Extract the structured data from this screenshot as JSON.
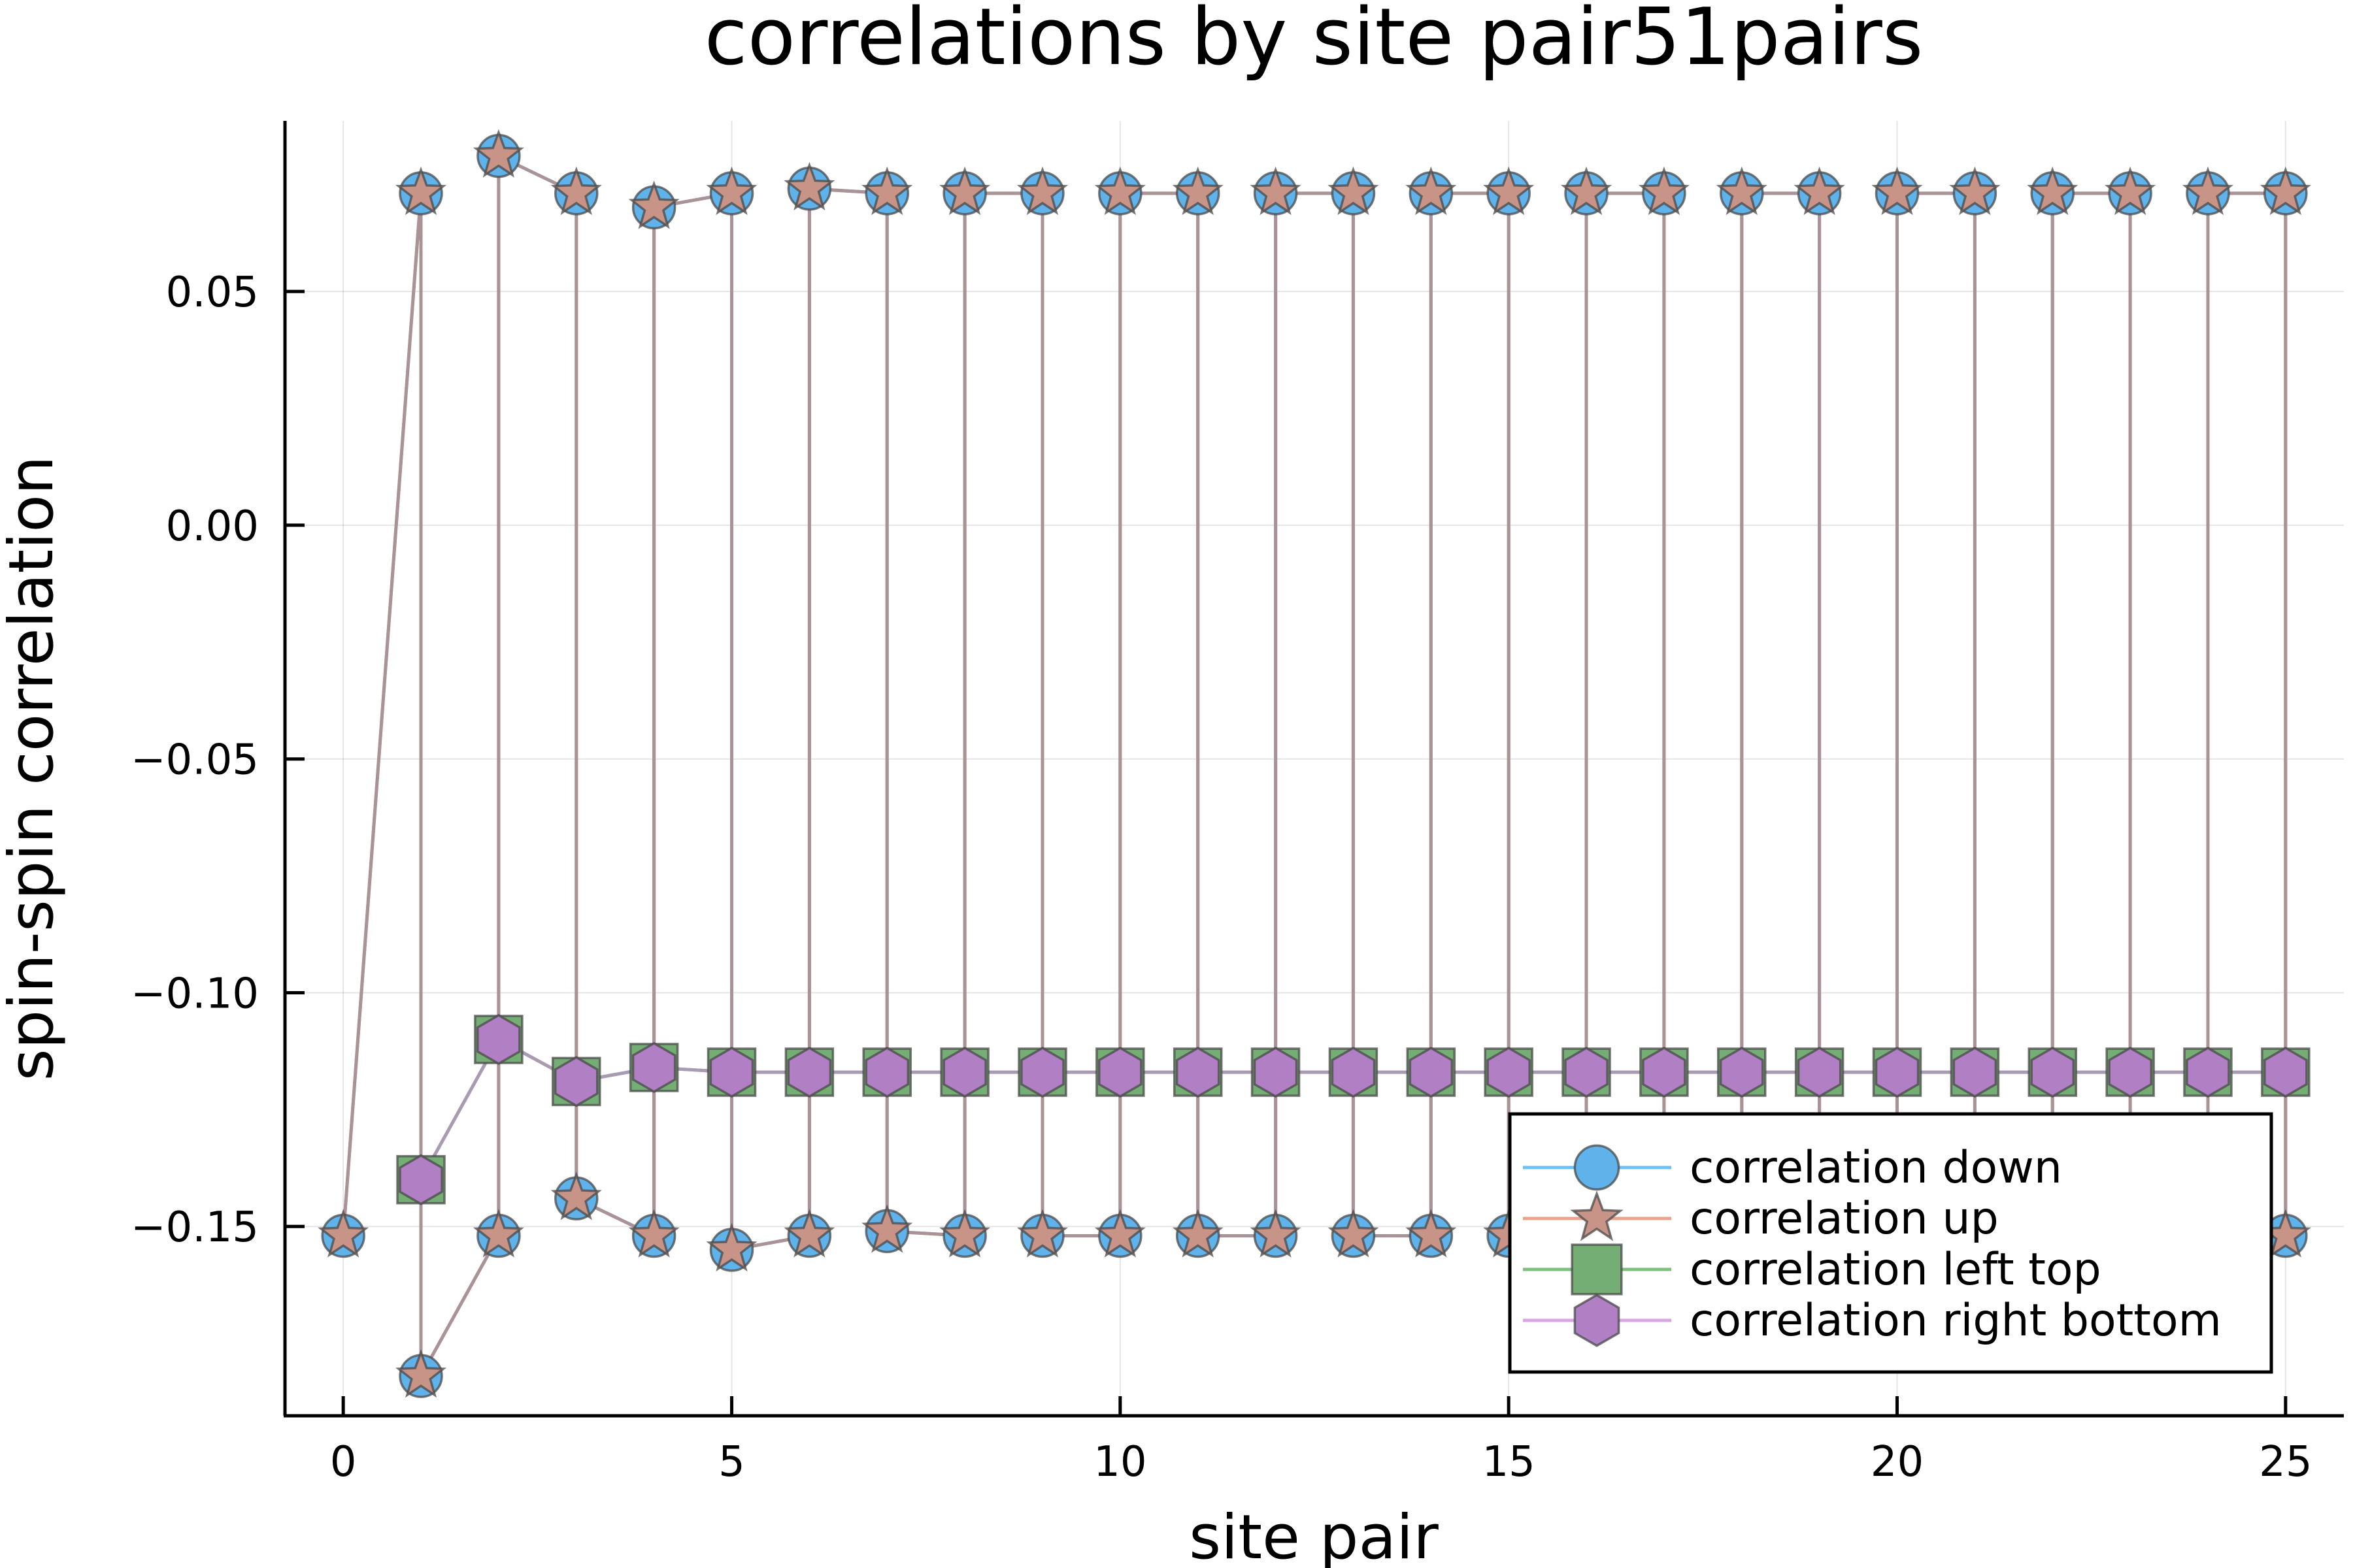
{
  "chart_data": {
    "type": "scatter",
    "title": "correlations by site pair51pairs",
    "xlabel": "site pair",
    "ylabel": "spin-spin correlation",
    "xlim": [
      -0.75,
      25.75
    ],
    "ylim": [
      -0.1905,
      0.0865
    ],
    "xticks": [
      0,
      5,
      10,
      15,
      20,
      25
    ],
    "xtick_labels": [
      "0",
      "5",
      "10",
      "15",
      "20",
      "25"
    ],
    "yticks": [
      -0.15,
      -0.1,
      -0.05,
      0.0,
      0.05
    ],
    "ytick_labels": [
      "−0.15",
      "−0.10",
      "−0.05",
      "0.00",
      "0.05"
    ],
    "grid": true,
    "legend_position": "bottom-right",
    "series": [
      {
        "name": "correlation down",
        "color": "#6ec1f5",
        "marker": "circle",
        "x": [
          0,
          1,
          1,
          2,
          2,
          3,
          3,
          4,
          4,
          5,
          5,
          6,
          6,
          7,
          7,
          8,
          8,
          9,
          9,
          10,
          10,
          11,
          11,
          12,
          12,
          13,
          13,
          14,
          14,
          15,
          15,
          16,
          16,
          17,
          17,
          18,
          18,
          19,
          19,
          20,
          20,
          21,
          21,
          22,
          22,
          23,
          23,
          24,
          24,
          25,
          25
        ],
        "y": [
          -0.152,
          0.071,
          -0.182,
          -0.152,
          0.079,
          0.071,
          -0.144,
          -0.152,
          0.068,
          0.071,
          -0.155,
          -0.152,
          0.072,
          0.071,
          -0.151,
          -0.152,
          0.071,
          0.071,
          -0.152,
          -0.152,
          0.071,
          0.071,
          -0.152,
          -0.152,
          0.071,
          0.071,
          -0.152,
          -0.152,
          0.071,
          0.071,
          -0.152,
          -0.152,
          0.071,
          0.071,
          -0.152,
          -0.152,
          0.071,
          0.071,
          -0.152,
          -0.152,
          0.071,
          0.071,
          -0.152,
          -0.152,
          0.071,
          0.071,
          -0.152,
          -0.152,
          0.071,
          0.071,
          -0.152
        ]
      },
      {
        "name": "correlation up",
        "color": "#e8a48c",
        "marker": "star",
        "x": [
          0,
          1,
          1,
          2,
          2,
          3,
          3,
          4,
          4,
          5,
          5,
          6,
          6,
          7,
          7,
          8,
          8,
          9,
          9,
          10,
          10,
          11,
          11,
          12,
          12,
          13,
          13,
          14,
          14,
          15,
          15,
          16,
          16,
          17,
          17,
          18,
          18,
          19,
          19,
          20,
          20,
          21,
          21,
          22,
          22,
          23,
          23,
          24,
          24,
          25,
          25
        ],
        "y": [
          -0.152,
          0.071,
          -0.182,
          -0.152,
          0.079,
          0.071,
          -0.144,
          -0.152,
          0.068,
          0.071,
          -0.155,
          -0.152,
          0.072,
          0.071,
          -0.151,
          -0.152,
          0.071,
          0.071,
          -0.152,
          -0.152,
          0.071,
          0.071,
          -0.152,
          -0.152,
          0.071,
          0.071,
          -0.152,
          -0.152,
          0.071,
          0.071,
          -0.152,
          -0.152,
          0.071,
          0.071,
          -0.152,
          -0.152,
          0.071,
          0.071,
          -0.152,
          -0.152,
          0.071,
          0.071,
          -0.152,
          -0.152,
          0.071,
          0.071,
          -0.152,
          -0.152,
          0.071,
          0.071,
          -0.152
        ]
      },
      {
        "name": "correlation left top",
        "color": "#7fbf7f",
        "marker": "square",
        "x": [
          1,
          2,
          3,
          4,
          5,
          6,
          7,
          8,
          9,
          10,
          11,
          12,
          13,
          14,
          15,
          16,
          17,
          18,
          19,
          20,
          21,
          22,
          23,
          24,
          25
        ],
        "y": [
          -0.14,
          -0.11,
          -0.119,
          -0.116,
          -0.117,
          -0.117,
          -0.117,
          -0.117,
          -0.117,
          -0.117,
          -0.117,
          -0.117,
          -0.117,
          -0.117,
          -0.117,
          -0.117,
          -0.117,
          -0.117,
          -0.117,
          -0.117,
          -0.117,
          -0.117,
          -0.117,
          -0.117,
          -0.117
        ]
      },
      {
        "name": "correlation right bottom",
        "color": "#d9a6e3",
        "marker": "hexagon",
        "x": [
          1,
          2,
          3,
          4,
          5,
          6,
          7,
          8,
          9,
          10,
          11,
          12,
          13,
          14,
          15,
          16,
          17,
          18,
          19,
          20,
          21,
          22,
          23,
          24,
          25
        ],
        "y": [
          -0.14,
          -0.11,
          -0.119,
          -0.116,
          -0.117,
          -0.117,
          -0.117,
          -0.117,
          -0.117,
          -0.117,
          -0.117,
          -0.117,
          -0.117,
          -0.117,
          -0.117,
          -0.117,
          -0.117,
          -0.117,
          -0.117,
          -0.117,
          -0.117,
          -0.117,
          -0.117,
          -0.117,
          -0.117
        ]
      }
    ]
  }
}
